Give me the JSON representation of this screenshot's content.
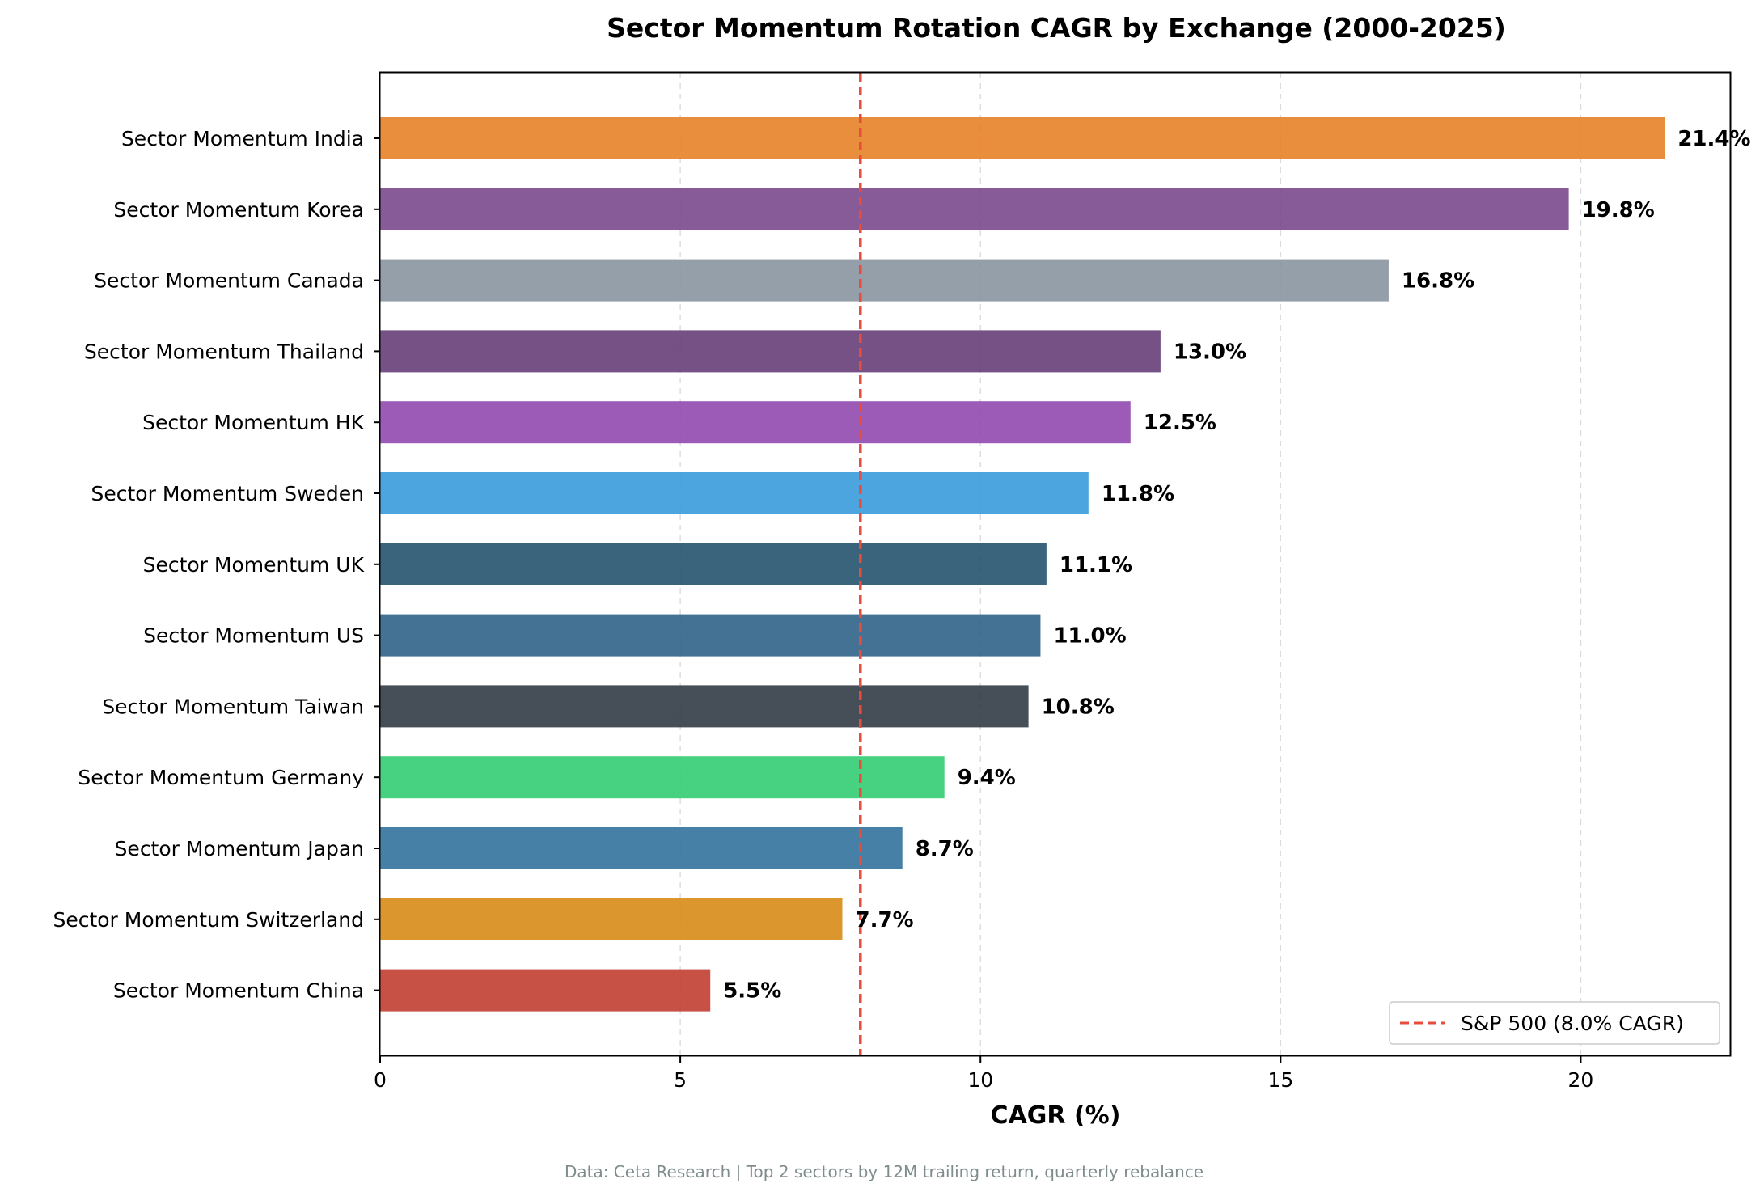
{
  "chart_data": {
    "type": "bar",
    "orientation": "horizontal",
    "title": "Sector Momentum Rotation CAGR by Exchange (2000-2025)",
    "xlabel": "CAGR (%)",
    "ylabel": "",
    "xlim": [
      0,
      22.5
    ],
    "xticks": [
      0,
      5,
      10,
      15,
      20
    ],
    "grid": "x-axis dashed",
    "categories": [
      "Sector Momentum India",
      "Sector Momentum Korea",
      "Sector Momentum Canada",
      "Sector Momentum Thailand",
      "Sector Momentum HK",
      "Sector Momentum Sweden",
      "Sector Momentum UK",
      "Sector Momentum US",
      "Sector Momentum Taiwan",
      "Sector Momentum Germany",
      "Sector Momentum Japan",
      "Sector Momentum Switzerland",
      "Sector Momentum China"
    ],
    "values": [
      21.4,
      19.8,
      16.8,
      13.0,
      12.5,
      11.8,
      11.1,
      11.0,
      10.8,
      9.4,
      8.7,
      7.7,
      5.5
    ],
    "value_labels": [
      "21.4%",
      "19.8%",
      "16.8%",
      "13.0%",
      "12.5%",
      "11.8%",
      "11.1%",
      "11.0%",
      "10.8%",
      "9.4%",
      "8.7%",
      "7.7%",
      "5.5%"
    ],
    "colors": [
      "#e67e22",
      "#76448a",
      "#85929e",
      "#633974",
      "#8e44ad",
      "#3498db",
      "#1f4e6a",
      "#2a5f86",
      "#2c3640",
      "#2ecc71",
      "#2e6e9a",
      "#d68910",
      "#c0392b"
    ],
    "reference_line": {
      "value": 8.0,
      "label": "S&P 500 (8.0% CAGR)",
      "color": "#e74c3c",
      "style": "dashed"
    },
    "legend_position": "bottom-right",
    "footnote": "Data: Ceta Research | Top 2 sectors by 12M trailing return, quarterly rebalance"
  }
}
